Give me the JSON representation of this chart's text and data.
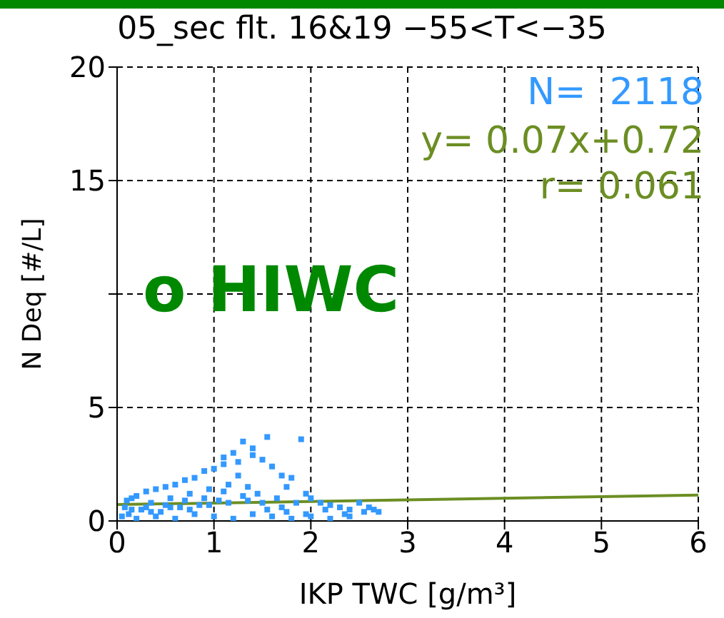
{
  "chart_data": {
    "type": "scatter",
    "title": "05_sec flt. 16&19 −55<T<−35",
    "xlabel": "IKP TWC [g/m³]",
    "ylabel": "N Deq [#/L]",
    "xlim": [
      0,
      6
    ],
    "xticks": [
      0,
      1,
      2,
      3,
      4,
      5,
      6
    ],
    "ylim": [
      0,
      20
    ],
    "yticks": [
      0,
      5,
      {
        "value": 10,
        "label": null
      },
      15,
      20
    ],
    "grid": true,
    "annotations": [
      "N=  2118",
      "y= 0.07x+0.72",
      "r= 0.061",
      "o HIWC"
    ],
    "series": [
      {
        "color": "#3399ff",
        "marker": "square",
        "x": [
          0.05,
          0.08,
          0.1,
          0.12,
          0.15,
          0.2,
          0.25,
          0.3,
          0.35,
          0.4,
          0.45,
          0.5,
          0.55,
          0.6,
          0.65,
          0.7,
          0.75,
          0.8,
          0.85,
          0.9,
          0.95,
          1.0,
          1.05,
          1.1,
          1.15,
          1.2,
          1.25,
          1.3,
          1.35,
          1.4,
          1.45,
          1.5,
          1.55,
          1.6,
          1.65,
          1.7,
          1.75,
          1.8,
          1.85,
          1.9,
          1.95,
          2.0,
          2.1,
          2.2,
          2.3,
          2.4,
          2.5,
          2.6,
          2.7,
          0.2,
          0.4,
          0.6,
          0.8,
          1.0,
          1.2,
          1.4,
          1.6,
          1.8,
          2.0,
          2.2,
          2.4,
          0.3,
          0.5,
          0.7,
          0.9,
          1.1,
          1.3,
          1.5,
          1.7,
          0.15,
          0.35,
          0.55,
          0.75,
          0.95,
          1.15,
          1.35,
          1.55,
          1.75,
          1.95,
          2.15,
          2.35,
          2.55,
          2.65,
          1.1,
          1.25,
          1.4
        ],
        "values": [
          0.2,
          0.6,
          0.9,
          0.3,
          1.0,
          1.1,
          0.5,
          1.3,
          0.8,
          1.4,
          0.4,
          1.5,
          1.0,
          1.6,
          0.6,
          1.8,
          1.2,
          1.9,
          0.7,
          2.2,
          1.4,
          2.3,
          0.9,
          2.5,
          1.6,
          3.0,
          2.0,
          3.5,
          1.5,
          3.2,
          1.2,
          2.7,
          3.7,
          2.4,
          1.0,
          2.0,
          1.5,
          1.9,
          0.8,
          3.6,
          1.2,
          1.0,
          0.8,
          0.7,
          0.6,
          0.5,
          0.8,
          0.6,
          0.4,
          0.1,
          0.2,
          0.1,
          0.3,
          0.2,
          0.1,
          0.3,
          0.2,
          0.1,
          0.2,
          0.1,
          0.2,
          0.6,
          0.7,
          0.9,
          1.0,
          1.3,
          1.1,
          0.8,
          0.6,
          0.5,
          0.4,
          0.6,
          0.5,
          0.7,
          0.8,
          0.9,
          0.5,
          0.4,
          0.3,
          0.5,
          0.3,
          0.4,
          0.5,
          2.8,
          2.6,
          2.9
        ]
      },
      {
        "type": "line",
        "color": "#6b8e23",
        "x": [
          0,
          6
        ],
        "values": [
          0.72,
          1.14
        ]
      }
    ]
  }
}
